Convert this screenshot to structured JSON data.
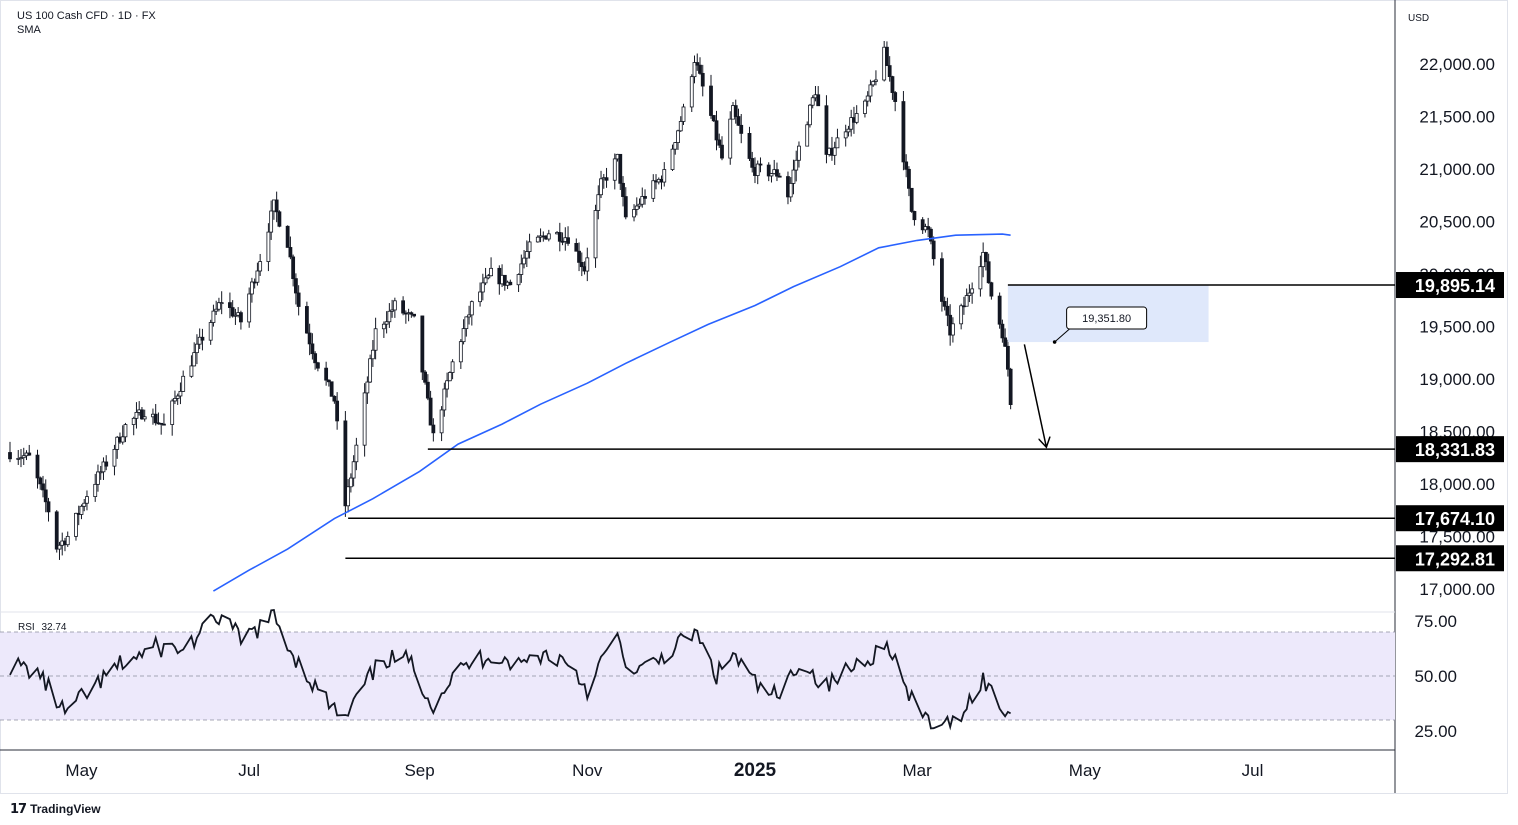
{
  "header": {
    "symbol_line": "US 100 Cash CFD · 1D · FX",
    "indicator_line": "SMA"
  },
  "currency_label": "USD",
  "footer": {
    "brand": "TradingView"
  },
  "colors": {
    "sma": "#2962ff",
    "rsi_band_fill": "#ede9fb",
    "zone_fill": "#dce6fb",
    "axis_text": "#131722",
    "level_line": "#000000"
  },
  "chart_data": [
    {
      "type": "candlestick",
      "title": "US 100 Cash CFD · 1D · FX",
      "ylim": [
        16800,
        22450
      ],
      "y_ticks": [
        17000,
        17500,
        18000,
        18500,
        19000,
        19500,
        20000,
        20500,
        21000,
        21500,
        22000
      ],
      "y_tick_labels": [
        "17,000.00",
        "17,500.00",
        "18,000.00",
        "18,500.00",
        "19,000.00",
        "19,500.00",
        "20,000.00",
        "20,500.00",
        "21,000.00",
        "21,500.00",
        "22,000.00"
      ],
      "x_tick_labels": [
        "May",
        "Jul",
        "Sep",
        "Nov",
        "2025",
        "Mar",
        "May",
        "Jul"
      ],
      "x_tick_dates": [
        "2024-05-01",
        "2024-07-01",
        "2024-09-01",
        "2024-11-01",
        "2025-01-01",
        "2025-03-01",
        "2025-05-01",
        "2025-07-01"
      ],
      "x_range": [
        "2024-04-05",
        "2025-08-20"
      ],
      "price_path": [
        [
          "2024-04-05",
          18300
        ],
        [
          "2024-04-12",
          18250
        ],
        [
          "2024-04-19",
          17750
        ],
        [
          "2024-04-22",
          17400
        ],
        [
          "2024-04-26",
          17500
        ],
        [
          "2024-05-03",
          17900
        ],
        [
          "2024-05-10",
          18200
        ],
        [
          "2024-05-17",
          18550
        ],
        [
          "2024-05-24",
          18700
        ],
        [
          "2024-05-31",
          18550
        ],
        [
          "2024-06-07",
          19000
        ],
        [
          "2024-06-14",
          19400
        ],
        [
          "2024-06-21",
          19750
        ],
        [
          "2024-06-28",
          19550
        ],
        [
          "2024-07-05",
          20150
        ],
        [
          "2024-07-10",
          20650
        ],
        [
          "2024-07-15",
          20300
        ],
        [
          "2024-07-19",
          19700
        ],
        [
          "2024-07-25",
          19200
        ],
        [
          "2024-08-01",
          18800
        ],
        [
          "2024-08-05",
          17800
        ],
        [
          "2024-08-09",
          18350
        ],
        [
          "2024-08-16",
          19450
        ],
        [
          "2024-08-23",
          19700
        ],
        [
          "2024-08-30",
          19550
        ],
        [
          "2024-09-06",
          18450
        ],
        [
          "2024-09-13",
          19150
        ],
        [
          "2024-09-20",
          19700
        ],
        [
          "2024-09-27",
          20000
        ],
        [
          "2024-10-04",
          19900
        ],
        [
          "2024-10-11",
          20250
        ],
        [
          "2024-10-18",
          20400
        ],
        [
          "2024-10-25",
          20350
        ],
        [
          "2024-10-31",
          20050
        ],
        [
          "2024-11-06",
          20850
        ],
        [
          "2024-11-12",
          21100
        ],
        [
          "2024-11-15",
          20500
        ],
        [
          "2024-11-22",
          20750
        ],
        [
          "2024-11-29",
          20950
        ],
        [
          "2024-12-06",
          21550
        ],
        [
          "2024-12-10",
          22050
        ],
        [
          "2024-12-16",
          21500
        ],
        [
          "2024-12-20",
          21100
        ],
        [
          "2024-12-24",
          21550
        ],
        [
          "2024-12-31",
          21000
        ],
        [
          "2025-01-10",
          20950
        ],
        [
          "2025-01-13",
          20750
        ],
        [
          "2025-01-17",
          21200
        ],
        [
          "2025-01-23",
          21750
        ],
        [
          "2025-01-27",
          21100
        ],
        [
          "2025-02-03",
          21400
        ],
        [
          "2025-02-10",
          21600
        ],
        [
          "2025-02-17",
          22100
        ],
        [
          "2025-02-21",
          21650
        ],
        [
          "2025-02-27",
          20600
        ],
        [
          "2025-03-05",
          20400
        ],
        [
          "2025-03-10",
          19750
        ],
        [
          "2025-03-13",
          19450
        ],
        [
          "2025-03-18",
          19700
        ],
        [
          "2025-03-25",
          20200
        ],
        [
          "2025-03-28",
          19800
        ],
        [
          "2025-04-01",
          19450
        ],
        [
          "2025-04-03",
          19100
        ],
        [
          "2025-04-04",
          18800
        ]
      ],
      "series": [
        {
          "name": "SMA",
          "points": [
            [
              "2024-06-18",
              16980
            ],
            [
              "2024-07-01",
              17180
            ],
            [
              "2024-07-15",
              17380
            ],
            [
              "2024-08-01",
              17670
            ],
            [
              "2024-08-15",
              17860
            ],
            [
              "2024-09-01",
              18120
            ],
            [
              "2024-09-15",
              18380
            ],
            [
              "2024-10-01",
              18570
            ],
            [
              "2024-10-15",
              18760
            ],
            [
              "2024-11-01",
              18960
            ],
            [
              "2024-11-15",
              19150
            ],
            [
              "2024-12-01",
              19350
            ],
            [
              "2024-12-15",
              19520
            ],
            [
              "2025-01-01",
              19700
            ],
            [
              "2025-01-15",
              19880
            ],
            [
              "2025-02-01",
              20070
            ],
            [
              "2025-02-15",
              20250
            ],
            [
              "2025-03-01",
              20320
            ],
            [
              "2025-03-15",
              20370
            ],
            [
              "2025-04-01",
              20380
            ],
            [
              "2025-04-04",
              20370
            ]
          ]
        }
      ],
      "horizontal_levels": [
        {
          "value": 19895.14,
          "label": "19,895.14",
          "from": "2025-04-03"
        },
        {
          "value": 18331.83,
          "label": "18,331.83",
          "from": "2024-09-04"
        },
        {
          "value": 17674.1,
          "label": "17,674.10",
          "from": "2024-08-06"
        },
        {
          "value": 17292.81,
          "label": "17,292.81",
          "from": "2024-08-05"
        }
      ],
      "zone": {
        "from": "2025-04-03",
        "to": "2025-06-15",
        "y_from": 19351.8,
        "y_to": 19895.14
      },
      "callout": {
        "label": "19,351.80",
        "anchor": [
          "2025-04-20",
          19351.8
        ]
      },
      "arrow": {
        "from": [
          "2025-04-09",
          19330
        ],
        "to": [
          "2025-04-17",
          18350
        ]
      }
    },
    {
      "type": "line",
      "title": "RSI",
      "legend_name": "RSI",
      "legend_value": "32.74",
      "ylim": [
        20,
        80
      ],
      "y_ticks": [
        25,
        50,
        75
      ],
      "y_tick_labels": [
        "25.00",
        "50.00",
        "75.00"
      ],
      "band": [
        30,
        70
      ],
      "midline": 50,
      "values": [
        [
          "2024-04-05",
          55
        ],
        [
          "2024-04-15",
          52
        ],
        [
          "2024-04-25",
          33
        ],
        [
          "2024-05-03",
          42
        ],
        [
          "2024-05-15",
          55
        ],
        [
          "2024-05-28",
          63
        ],
        [
          "2024-06-07",
          62
        ],
        [
          "2024-06-14",
          70
        ],
        [
          "2024-06-21",
          78
        ],
        [
          "2024-06-28",
          66
        ],
        [
          "2024-07-10",
          77
        ],
        [
          "2024-07-17",
          60
        ],
        [
          "2024-07-25",
          45
        ],
        [
          "2024-08-02",
          33
        ],
        [
          "2024-08-05",
          30
        ],
        [
          "2024-08-12",
          46
        ],
        [
          "2024-08-19",
          58
        ],
        [
          "2024-08-28",
          57
        ],
        [
          "2024-09-06",
          37
        ],
        [
          "2024-09-13",
          50
        ],
        [
          "2024-09-20",
          56
        ],
        [
          "2024-09-27",
          60
        ],
        [
          "2024-10-07",
          55
        ],
        [
          "2024-10-15",
          60
        ],
        [
          "2024-10-25",
          57
        ],
        [
          "2024-11-01",
          44
        ],
        [
          "2024-11-11",
          68
        ],
        [
          "2024-11-18",
          50
        ],
        [
          "2024-11-25",
          56
        ],
        [
          "2024-12-05",
          65
        ],
        [
          "2024-12-10",
          70
        ],
        [
          "2024-12-18",
          50
        ],
        [
          "2024-12-24",
          60
        ],
        [
          "2025-01-02",
          45
        ],
        [
          "2025-01-10",
          40
        ],
        [
          "2025-01-17",
          57
        ],
        [
          "2025-01-27",
          45
        ],
        [
          "2025-02-03",
          52
        ],
        [
          "2025-02-10",
          58
        ],
        [
          "2025-02-19",
          64
        ],
        [
          "2025-02-26",
          40
        ],
        [
          "2025-03-05",
          30
        ],
        [
          "2025-03-10",
          25
        ],
        [
          "2025-03-18",
          35
        ],
        [
          "2025-03-25",
          49
        ],
        [
          "2025-03-31",
          36
        ],
        [
          "2025-04-04",
          33
        ]
      ]
    }
  ]
}
